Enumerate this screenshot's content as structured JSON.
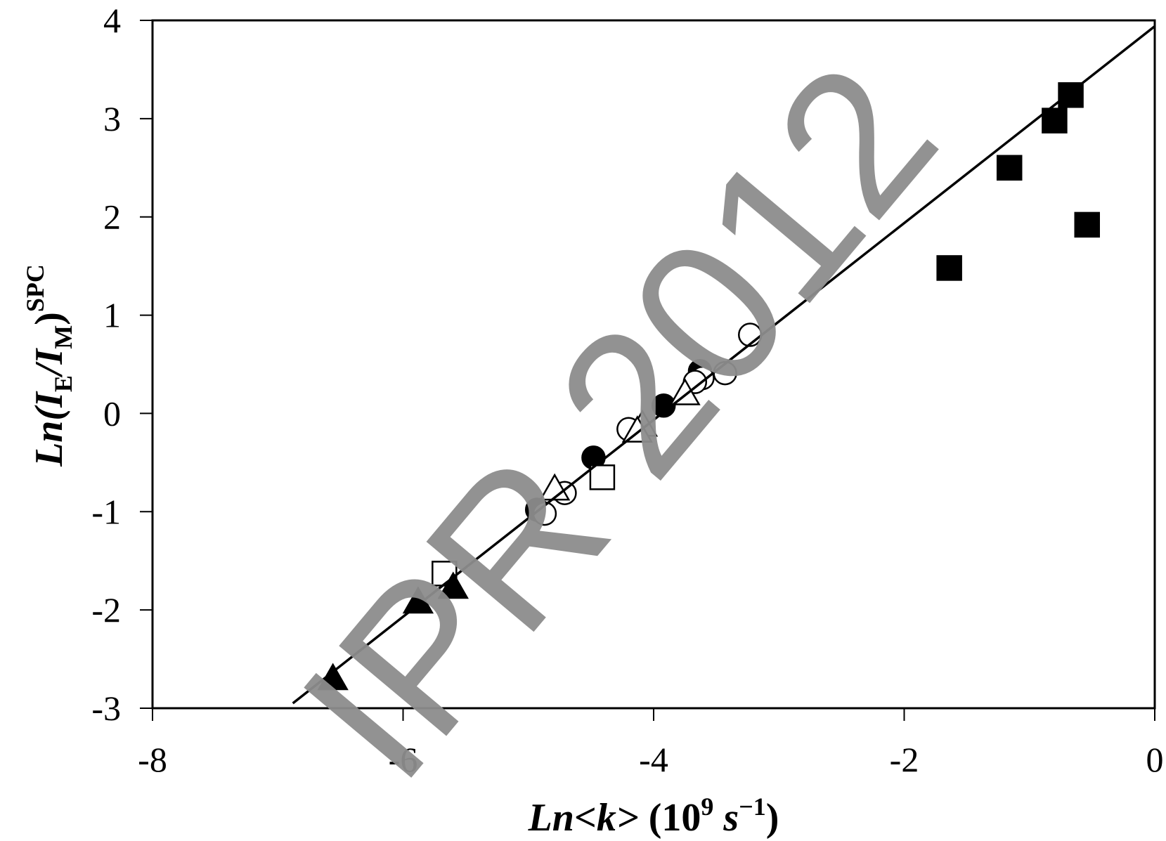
{
  "chart_data": {
    "type": "scatter",
    "title": "",
    "xlabel": {
      "prefix": "Ln<k>",
      "unit_open": " (10",
      "unit_exp": "9",
      "unit_mid": " s",
      "unit_exp2": "−1",
      "unit_close": ")"
    },
    "ylabel": {
      "prefix": "Ln",
      "open": "(I",
      "sub1": "E",
      "mid": "/I",
      "sub2": "M",
      "close": ")",
      "sup": "SPC"
    },
    "xlim": [
      -8,
      0
    ],
    "ylim": [
      -3,
      4
    ],
    "xticks": [
      -8,
      -6,
      -4,
      -2,
      0
    ],
    "yticks": [
      -3,
      -2,
      -1,
      0,
      1,
      2,
      3,
      4
    ],
    "xtick_labels": [
      "-8",
      "-6",
      "-4",
      "-2",
      "0"
    ],
    "ytick_labels": [
      "-3",
      "-2",
      "-1",
      "0",
      "1",
      "2",
      "3",
      "4"
    ],
    "grid": false,
    "legend": "none",
    "series": [
      {
        "marker": "filled-square",
        "color": "#000000",
        "points": [
          {
            "x": -0.67,
            "y": 3.24
          },
          {
            "x": -0.8,
            "y": 2.98
          },
          {
            "x": -1.16,
            "y": 2.5
          },
          {
            "x": -0.54,
            "y": 1.92
          },
          {
            "x": -1.64,
            "y": 1.48
          }
        ]
      },
      {
        "marker": "filled-circle",
        "color": "#000000",
        "points": [
          {
            "x": -3.63,
            "y": 0.43
          },
          {
            "x": -3.92,
            "y": 0.08
          },
          {
            "x": -4.48,
            "y": -0.45
          },
          {
            "x": -4.93,
            "y": -0.98
          }
        ]
      },
      {
        "marker": "open-circle",
        "color": "#000000",
        "points": [
          {
            "x": -3.23,
            "y": 0.8
          },
          {
            "x": -3.43,
            "y": 0.41
          },
          {
            "x": -3.61,
            "y": 0.36
          },
          {
            "x": -3.67,
            "y": 0.32
          },
          {
            "x": -4.2,
            "y": -0.16
          },
          {
            "x": -4.71,
            "y": -0.81
          },
          {
            "x": -4.87,
            "y": -1.02
          }
        ]
      },
      {
        "marker": "open-triangle",
        "color": "#000000",
        "points": [
          {
            "x": -3.75,
            "y": 0.2
          },
          {
            "x": -4.09,
            "y": -0.12
          },
          {
            "x": -4.13,
            "y": -0.18
          },
          {
            "x": -4.79,
            "y": -0.77
          }
        ]
      },
      {
        "marker": "open-square",
        "color": "#000000",
        "points": [
          {
            "x": -4.41,
            "y": -0.65
          },
          {
            "x": -5.67,
            "y": -1.63
          }
        ]
      },
      {
        "marker": "filled-triangle",
        "color": "#000000",
        "points": [
          {
            "x": -5.6,
            "y": -1.77
          },
          {
            "x": -5.88,
            "y": -1.92
          },
          {
            "x": -6.56,
            "y": -2.7
          }
        ]
      }
    ],
    "fit_line": {
      "x": [
        -6.88,
        0
      ],
      "y": [
        -2.95,
        3.94
      ],
      "color": "#000000"
    },
    "watermark": "IPR 2012"
  }
}
